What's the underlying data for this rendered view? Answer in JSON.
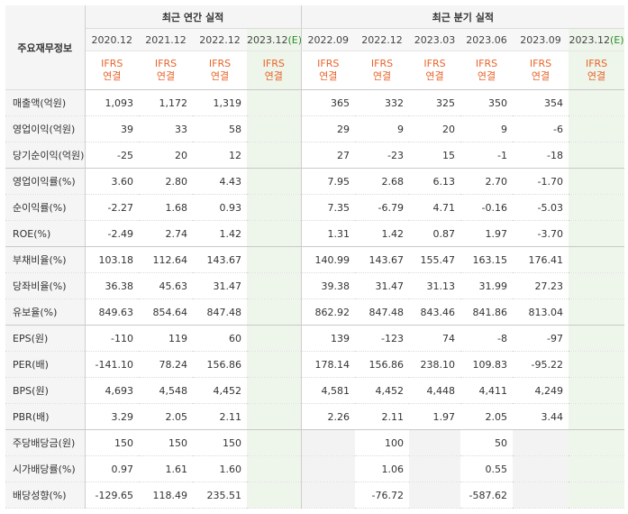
{
  "header": {
    "corner_label": "주요재무정보",
    "annual_group": "최근 연간 실적",
    "quarter_group": "최근 분기 실적"
  },
  "periods": {
    "annual": [
      "2020.12",
      "2021.12",
      "2022.12",
      "2023.12"
    ],
    "quarter": [
      "2022.09",
      "2022.12",
      "2023.03",
      "2023.06",
      "2023.09",
      "2023.12"
    ],
    "estimate_suffix": "(E)"
  },
  "ifrs_label": "IFRS",
  "consolidated_label": "연결",
  "rows": [
    {
      "label": "매출액(억원)",
      "annual": [
        "1,093",
        "1,172",
        "1,319",
        ""
      ],
      "quarter": [
        "365",
        "332",
        "325",
        "350",
        "354",
        ""
      ]
    },
    {
      "label": "영업이익(억원)",
      "annual": [
        "39",
        "33",
        "58",
        ""
      ],
      "quarter": [
        "29",
        "9",
        "20",
        "9",
        "-6",
        ""
      ]
    },
    {
      "label": "당기순이익(억원)",
      "annual": [
        "-25",
        "20",
        "12",
        ""
      ],
      "quarter": [
        "27",
        "-23",
        "15",
        "-1",
        "-18",
        ""
      ]
    },
    {
      "label": "영업이익률(%)",
      "annual": [
        "3.60",
        "2.80",
        "4.43",
        ""
      ],
      "quarter": [
        "7.95",
        "2.68",
        "6.13",
        "2.70",
        "-1.70",
        ""
      ]
    },
    {
      "label": "순이익률(%)",
      "annual": [
        "-2.27",
        "1.68",
        "0.93",
        ""
      ],
      "quarter": [
        "7.35",
        "-6.79",
        "4.71",
        "-0.16",
        "-5.03",
        ""
      ]
    },
    {
      "label": "ROE(%)",
      "annual": [
        "-2.49",
        "2.74",
        "1.42",
        ""
      ],
      "quarter": [
        "1.31",
        "1.42",
        "0.87",
        "1.97",
        "-3.70",
        ""
      ]
    },
    {
      "label": "부채비율(%)",
      "annual": [
        "103.18",
        "112.64",
        "143.67",
        ""
      ],
      "quarter": [
        "140.99",
        "143.67",
        "155.47",
        "163.15",
        "176.41",
        ""
      ]
    },
    {
      "label": "당좌비율(%)",
      "annual": [
        "36.38",
        "45.63",
        "31.47",
        ""
      ],
      "quarter": [
        "39.38",
        "31.47",
        "31.13",
        "31.99",
        "27.23",
        ""
      ]
    },
    {
      "label": "유보율(%)",
      "annual": [
        "849.63",
        "854.64",
        "847.48",
        ""
      ],
      "quarter": [
        "862.92",
        "847.48",
        "843.46",
        "841.86",
        "813.04",
        ""
      ]
    },
    {
      "label": "EPS(원)",
      "annual": [
        "-110",
        "119",
        "60",
        ""
      ],
      "quarter": [
        "139",
        "-123",
        "74",
        "-8",
        "-97",
        ""
      ]
    },
    {
      "label": "PER(배)",
      "annual": [
        "-141.10",
        "78.24",
        "156.86",
        ""
      ],
      "quarter": [
        "178.14",
        "156.86",
        "238.10",
        "109.83",
        "-95.22",
        ""
      ]
    },
    {
      "label": "BPS(원)",
      "annual": [
        "4,693",
        "4,548",
        "4,452",
        ""
      ],
      "quarter": [
        "4,581",
        "4,452",
        "4,448",
        "4,411",
        "4,249",
        ""
      ]
    },
    {
      "label": "PBR(배)",
      "annual": [
        "3.29",
        "2.05",
        "2.11",
        ""
      ],
      "quarter": [
        "2.26",
        "2.11",
        "1.97",
        "2.05",
        "3.44",
        ""
      ]
    },
    {
      "label": "주당배당금(원)",
      "annual": [
        "150",
        "150",
        "150",
        ""
      ],
      "quarter": [
        "",
        "100",
        "",
        "50",
        "",
        ""
      ]
    },
    {
      "label": "시가배당률(%)",
      "annual": [
        "0.97",
        "1.61",
        "1.60",
        ""
      ],
      "quarter": [
        "",
        "1.06",
        "",
        "0.55",
        "",
        ""
      ]
    },
    {
      "label": "배당성향(%)",
      "annual": [
        "-129.65",
        "118.49",
        "235.51",
        ""
      ],
      "quarter": [
        "",
        "-76.72",
        "",
        "-587.62",
        "",
        ""
      ]
    }
  ],
  "group_end_rows": [
    2,
    5,
    8,
    12
  ]
}
